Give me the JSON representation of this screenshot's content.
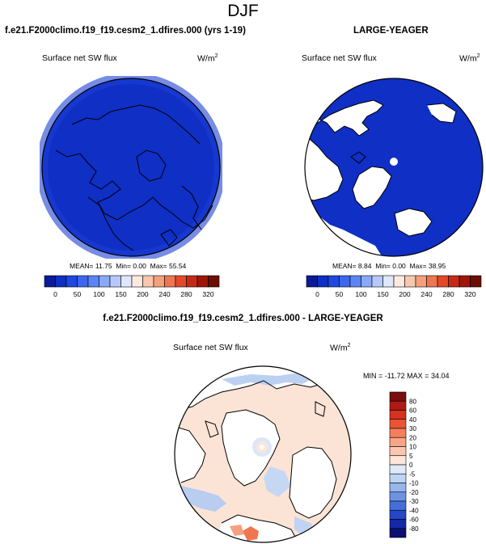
{
  "season": "DJF",
  "chart_data": [
    {
      "type": "heatmap",
      "projection": "polar-stereographic-north",
      "title": "f.e21.F2000climo.f19_f19.cesm2_1.dfires.000 (yrs 1-19)",
      "variable": "Surface net SW flux",
      "units": "W/m",
      "units_sup": "2",
      "stats": {
        "mean": "11.75",
        "min": "0.00",
        "max": "55.54",
        "mean_label": "MEAN=",
        "min_label": "Min=",
        "max_label": "Max="
      },
      "colorbar": {
        "orientation": "horizontal",
        "labels": [
          "0",
          "50",
          "100",
          "150",
          "200",
          "240",
          "280",
          "320"
        ],
        "colors": [
          "#0b1a99",
          "#0d2fc4",
          "#1e48e0",
          "#3d66ee",
          "#5b84f5",
          "#8aa8f8",
          "#b6c8fb",
          "#dfe7fd",
          "#fde9de",
          "#f9c7ae",
          "#f4a07c",
          "#ee7650",
          "#e24a2a",
          "#c72a14",
          "#9e1608",
          "#6d0d04"
        ]
      },
      "field_color": "#0f2fc5"
    },
    {
      "type": "heatmap",
      "projection": "polar-stereographic-north",
      "title": "LARGE-YEAGER",
      "variable": "Surface net SW flux",
      "units": "W/m",
      "units_sup": "2",
      "stats": {
        "mean": "8.84",
        "min": "0.00",
        "max": "38.95",
        "mean_label": "MEAN=",
        "min_label": "Min=",
        "max_label": "Max="
      },
      "colorbar": {
        "orientation": "horizontal",
        "labels": [
          "0",
          "50",
          "100",
          "150",
          "200",
          "240",
          "280",
          "320"
        ],
        "colors": [
          "#0b1a99",
          "#0d2fc4",
          "#1e48e0",
          "#3d66ee",
          "#5b84f5",
          "#8aa8f8",
          "#b6c8fb",
          "#dfe7fd",
          "#fde9de",
          "#f9c7ae",
          "#f4a07c",
          "#ee7650",
          "#e24a2a",
          "#c72a14",
          "#9e1608",
          "#6d0d04"
        ]
      },
      "field_color": "#0f2fc5"
    },
    {
      "type": "heatmap",
      "projection": "polar-stereographic-north",
      "title": "f.e21.F2000climo.f19_f19.cesm2_1.dfires.000 - LARGE-YEAGER",
      "variable": "Surface net SW flux",
      "units": "W/m",
      "units_sup": "2",
      "stats": {
        "min": "-11.72",
        "max": "34.04",
        "min_label": "MIN =",
        "max_label": "MAX ="
      },
      "colorbar": {
        "orientation": "vertical",
        "labels": [
          "80",
          "60",
          "40",
          "30",
          "20",
          "10",
          "5",
          "0",
          "-5",
          "-10",
          "-20",
          "-30",
          "-40",
          "-60",
          "-80"
        ],
        "colors": [
          "#7a0d0d",
          "#b01a14",
          "#d53220",
          "#ea5534",
          "#f47f5c",
          "#f8a487",
          "#fbc7b0",
          "#fde6d9",
          "#dfeaf8",
          "#bfd3f3",
          "#98b6ec",
          "#6e92e2",
          "#456fd8",
          "#2347c6",
          "#1428a8",
          "#0a0f72"
        ]
      },
      "field_color": "#fbe4d6"
    }
  ]
}
